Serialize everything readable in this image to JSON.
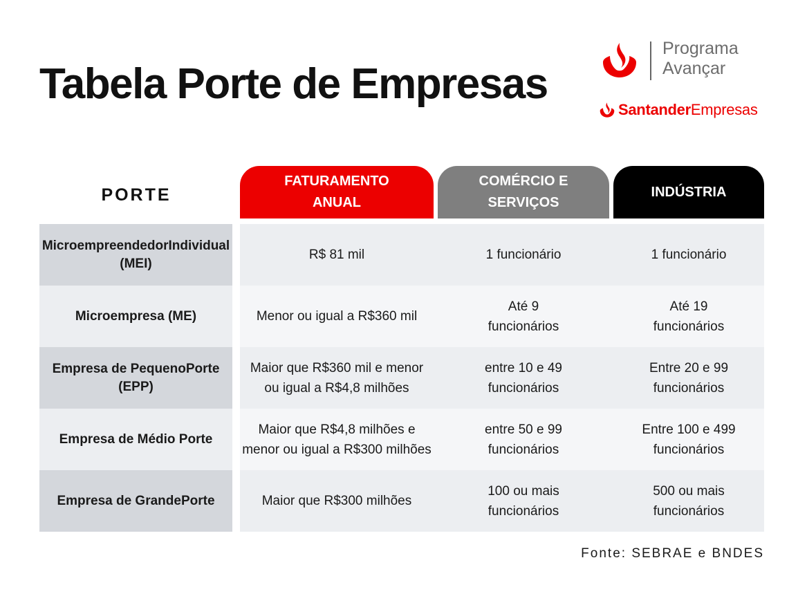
{
  "title": "Tabela Porte de Empresas",
  "logo": {
    "program_line1": "Programa",
    "program_line2": "Avançar",
    "brand_bold": "Santander",
    "brand_regular": "Empresas",
    "accent_color": "#ec0000"
  },
  "table": {
    "porte_header": "PORTE",
    "headers": {
      "faturamento": {
        "line1": "FATURAMENTO",
        "line2": "ANUAL",
        "color": "#ec0000"
      },
      "comercio": {
        "line1": "COMÉRCIO E",
        "line2": "SERVIÇOS",
        "color": "#7f7f7f"
      },
      "industria": {
        "line1": "INDÚSTRIA",
        "color": "#000000"
      }
    },
    "rows": [
      {
        "porte": [
          "Microempreendedor",
          "Individual (MEI)"
        ],
        "faturamento": [
          "R$ 81 mil"
        ],
        "comercio": [
          "1 funcionário"
        ],
        "industria": [
          "1 funcionário"
        ]
      },
      {
        "porte": [
          "Microempresa (ME)"
        ],
        "faturamento": [
          "Menor ou igual a R$360 mil"
        ],
        "comercio": [
          "Até 9",
          "funcionários"
        ],
        "industria": [
          "Até 19",
          "funcionários"
        ]
      },
      {
        "porte": [
          "Empresa de Pequeno",
          "Porte (EPP)"
        ],
        "faturamento": [
          "Maior que R$360 mil e menor",
          "ou igual a R$4,8 milhões"
        ],
        "comercio": [
          "entre 10 e 49",
          "funcionários"
        ],
        "industria": [
          "Entre 20 e 99",
          "funcionários"
        ]
      },
      {
        "porte": [
          "Empresa de Médio Porte"
        ],
        "faturamento": [
          "Maior que R$4,8 milhões e",
          "menor ou igual a R$300 milhões"
        ],
        "comercio": [
          "entre 50 e 99",
          "funcionários"
        ],
        "industria": [
          "Entre 100 e 499",
          "funcionários"
        ]
      },
      {
        "porte": [
          "Empresa de Grande",
          "Porte"
        ],
        "faturamento": [
          "Maior que R$300 milhões"
        ],
        "comercio": [
          "100 ou mais",
          "funcionários"
        ],
        "industria": [
          "500 ou mais",
          "funcionários"
        ]
      }
    ]
  },
  "source": "Fonte: SEBRAE e BNDES"
}
